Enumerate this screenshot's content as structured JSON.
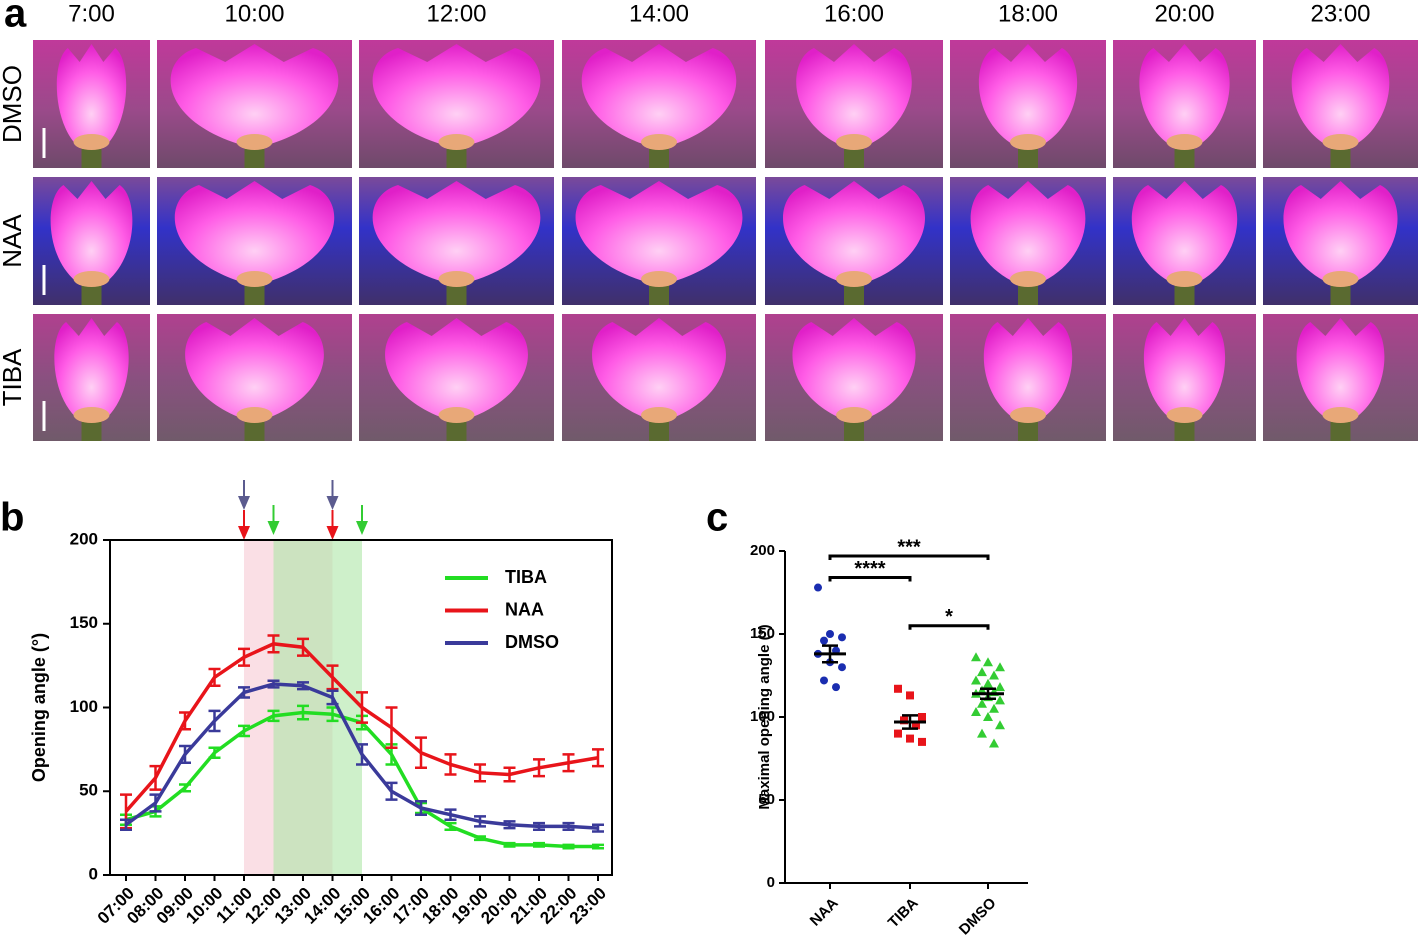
{
  "panel_a": {
    "label": "a",
    "times": [
      "7:00",
      "10:00",
      "12:00",
      "14:00",
      "16:00",
      "18:00",
      "20:00",
      "23:00"
    ],
    "rows": [
      "DMSO",
      "NAA",
      "TIBA"
    ]
  },
  "chart_data": [
    {
      "type": "line",
      "panel_label": "b",
      "y_label": "Opening angle (°)",
      "categories": [
        "07:00",
        "08:00",
        "09:00",
        "10:00",
        "11:00",
        "12:00",
        "13:00",
        "14:00",
        "15:00",
        "16:00",
        "17:00",
        "18:00",
        "19:00",
        "20:00",
        "21:00",
        "22:00",
        "23:00"
      ],
      "ylim": [
        0,
        200
      ],
      "yticks": [
        0,
        50,
        100,
        150,
        200
      ],
      "legend": "upper right",
      "bands": [
        {
          "from": "11:00",
          "to": "14:00",
          "color": "#f7c9d3",
          "arrow_colors": [
            "#5b5b8f",
            "#e8141a"
          ]
        },
        {
          "from": "12:00",
          "to": "15:00",
          "color": "#aee6a6",
          "arrow_colors": [
            "#33cc33"
          ]
        }
      ],
      "series": [
        {
          "name": "TIBA",
          "color": "#22dd22",
          "values": [
            33,
            38,
            52,
            73,
            86,
            95,
            97,
            96,
            91,
            72,
            40,
            29,
            22,
            18,
            18,
            17,
            17
          ],
          "errors": [
            3,
            3,
            2,
            3,
            3,
            3,
            4,
            4,
            4,
            6,
            3,
            2,
            1,
            1,
            1,
            1,
            1
          ]
        },
        {
          "name": "NAA",
          "color": "#e8141a",
          "values": [
            38,
            58,
            92,
            118,
            130,
            138,
            136,
            118,
            100,
            88,
            73,
            66,
            61,
            60,
            64,
            67,
            70
          ],
          "errors": [
            10,
            7,
            5,
            5,
            5,
            5,
            5,
            7,
            9,
            12,
            9,
            6,
            5,
            4,
            5,
            5,
            5
          ]
        },
        {
          "name": "DMSO",
          "color": "#3a3a9a",
          "values": [
            30,
            43,
            72,
            92,
            109,
            114,
            113,
            106,
            72,
            50,
            40,
            36,
            32,
            30,
            29,
            29,
            28
          ],
          "errors": [
            3,
            5,
            5,
            6,
            3,
            2,
            2,
            4,
            6,
            5,
            4,
            3,
            3,
            2,
            2,
            2,
            2
          ]
        }
      ]
    },
    {
      "type": "strip",
      "panel_label": "c",
      "y_label": "Maximal opening angle (°)",
      "categories": [
        "NAA",
        "TIBA",
        "DMSO"
      ],
      "ylim": [
        0,
        200
      ],
      "yticks": [
        0,
        50,
        100,
        150,
        200
      ],
      "groups": [
        {
          "color": "#1a2db0",
          "marker": "circle",
          "mean": 138,
          "sem": 5,
          "values": [
            178,
            150,
            148,
            146,
            140,
            138,
            133,
            130,
            122,
            118
          ]
        },
        {
          "color": "#e8141a",
          "marker": "square",
          "mean": 97,
          "sem": 4,
          "values": [
            117,
            113,
            100,
            98,
            95,
            90,
            87,
            85
          ]
        },
        {
          "color": "#33cc33",
          "marker": "triangle",
          "mean": 114,
          "sem": 3,
          "values": [
            136,
            133,
            130,
            127,
            125,
            122,
            120,
            118,
            116,
            115,
            114,
            112,
            110,
            108,
            105,
            103,
            100,
            95,
            90,
            84
          ]
        }
      ],
      "annotations": [
        {
          "from": "NAA",
          "to": "DMSO",
          "y": 197,
          "text": "***"
        },
        {
          "from": "NAA",
          "to": "TIBA",
          "y": 184,
          "text": "****"
        },
        {
          "from": "TIBA",
          "to": "DMSO",
          "y": 155,
          "text": "*"
        }
      ]
    }
  ]
}
